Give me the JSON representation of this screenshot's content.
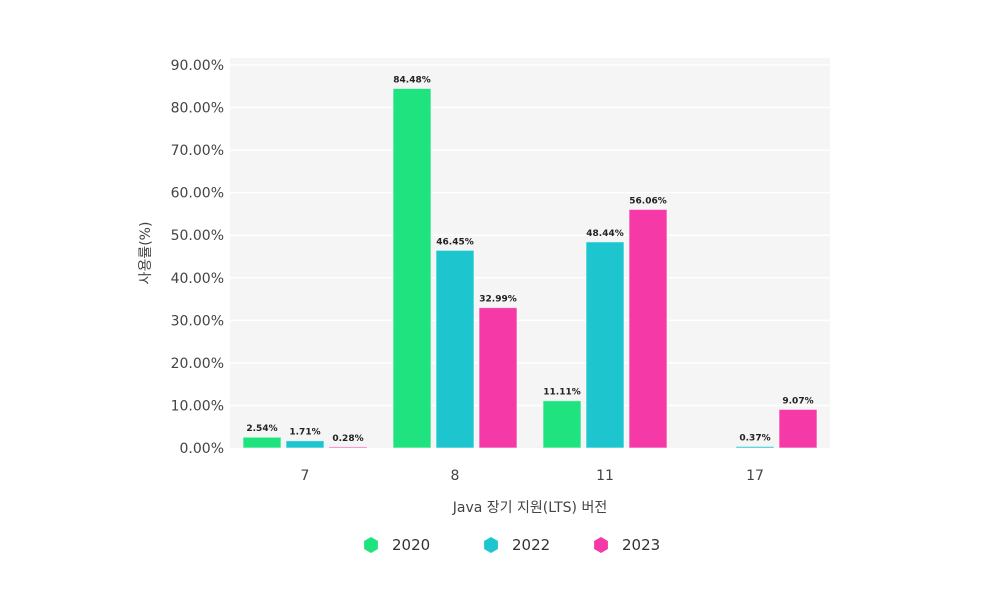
{
  "chart_data": {
    "type": "bar",
    "categories": [
      "7",
      "8",
      "11",
      "17"
    ],
    "series": [
      {
        "name": "2020",
        "color": "#1ee37f",
        "values": [
          2.54,
          84.48,
          11.11,
          null
        ],
        "labels": [
          "2.54%",
          "84.48%",
          "11.11%",
          ""
        ]
      },
      {
        "name": "2022",
        "color": "#1dc5cf",
        "values": [
          1.71,
          46.45,
          48.44,
          0.37
        ],
        "labels": [
          "1.71%",
          "46.45%",
          "48.44%",
          "0.37%"
        ]
      },
      {
        "name": "2023",
        "color": "#f53aa8",
        "values": [
          0.28,
          32.99,
          56.06,
          9.07
        ],
        "labels": [
          "0.28%",
          "32.99%",
          "56.06%",
          "9.07%"
        ]
      }
    ],
    "xlabel": "Java 장기 지원(LTS) 버전",
    "ylabel": "사용률(%)",
    "ylim": [
      0,
      90
    ],
    "yticks": [
      0,
      10,
      20,
      30,
      40,
      50,
      60,
      70,
      80,
      90
    ],
    "ytick_labels": [
      "0.00%",
      "10.00%",
      "20.00%",
      "30.00%",
      "40.00%",
      "50.00%",
      "60.00%",
      "70.00%",
      "80.00%",
      "90.00%"
    ],
    "grid": true,
    "legend_position": "bottom"
  }
}
